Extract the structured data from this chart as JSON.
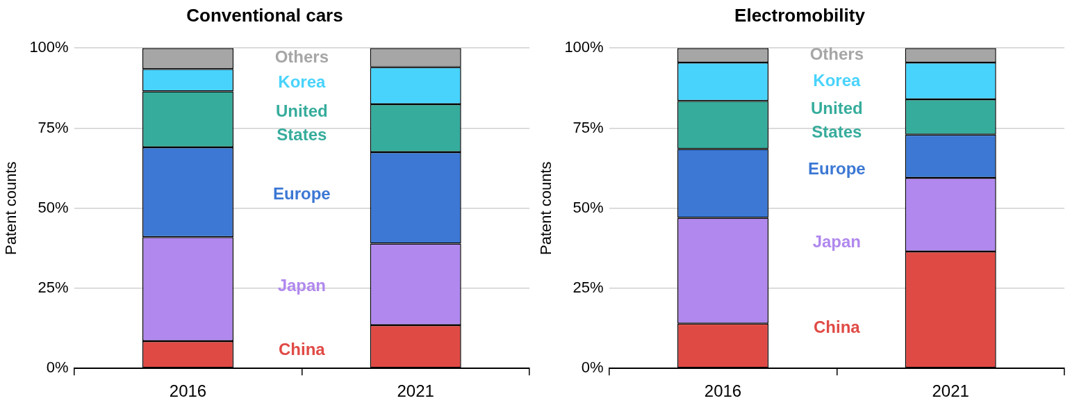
{
  "chart_data": [
    {
      "type": "bar",
      "title": "Conventional cars",
      "ylabel": "Patent counts",
      "categories": [
        "2016",
        "2021"
      ],
      "stacked": true,
      "legend": false,
      "grid": "y",
      "ylim": [
        0,
        100
      ],
      "yticks": [
        {
          "value": 0,
          "label": "0%"
        },
        {
          "value": 25,
          "label": "25%"
        },
        {
          "value": 50,
          "label": "50%"
        },
        {
          "value": 75,
          "label": "75%"
        },
        {
          "value": 100,
          "label": "100%"
        }
      ],
      "series": [
        {
          "name": "China",
          "color": "#e04a45",
          "values": [
            8.5,
            13.5
          ]
        },
        {
          "name": "Japan",
          "color": "#b088ee",
          "values": [
            32.5,
            25.5
          ]
        },
        {
          "name": "Europe",
          "color": "#3c78d4",
          "values": [
            28,
            28.5
          ]
        },
        {
          "name": "United States",
          "color": "#36ac9c",
          "values": [
            17.5,
            15
          ]
        },
        {
          "name": "Korea",
          "color": "#48d3fc",
          "values": [
            7,
            11.5
          ]
        },
        {
          "name": "Others",
          "color": "#a6a6a6",
          "values": [
            6.5,
            6
          ]
        }
      ]
    },
    {
      "type": "bar",
      "title": "Electromobility",
      "ylabel": "Patent counts",
      "categories": [
        "2016",
        "2021"
      ],
      "stacked": true,
      "legend": false,
      "grid": "y",
      "ylim": [
        0,
        100
      ],
      "yticks": [
        {
          "value": 0,
          "label": "0%"
        },
        {
          "value": 25,
          "label": "25%"
        },
        {
          "value": 50,
          "label": "50%"
        },
        {
          "value": 75,
          "label": "75%"
        },
        {
          "value": 100,
          "label": "100%"
        }
      ],
      "series": [
        {
          "name": "China",
          "color": "#e04a45",
          "values": [
            14,
            36.5
          ]
        },
        {
          "name": "Japan",
          "color": "#b088ee",
          "values": [
            33,
            23
          ]
        },
        {
          "name": "Europe",
          "color": "#3c78d4",
          "values": [
            21.5,
            13.5
          ]
        },
        {
          "name": "United States",
          "color": "#36ac9c",
          "values": [
            15,
            11
          ]
        },
        {
          "name": "Korea",
          "color": "#48d3fc",
          "values": [
            12,
            11.5
          ]
        },
        {
          "name": "Others",
          "color": "#a6a6a6",
          "values": [
            4.5,
            4.5
          ]
        }
      ]
    }
  ]
}
